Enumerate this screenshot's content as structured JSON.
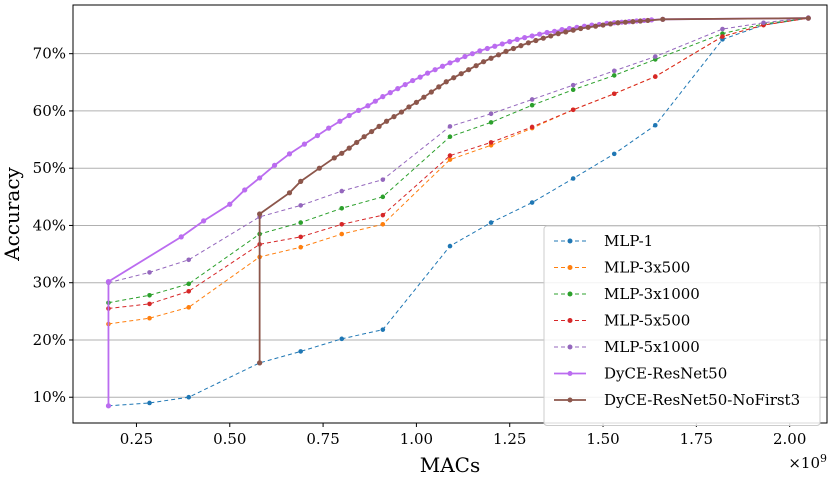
{
  "chart_data": {
    "type": "line",
    "xlabel": "MACs",
    "ylabel": "Accuracy",
    "x_multiplier": "×10",
    "x_multiplier_exp": "9",
    "xlim": [
      0.08,
      2.1
    ],
    "ylim": [
      0.055,
      0.785
    ],
    "xticks": [
      0.25,
      0.5,
      0.75,
      1.0,
      1.25,
      1.5,
      1.75,
      2.0
    ],
    "xtick_labels": [
      "0.25",
      "0.50",
      "0.75",
      "1.00",
      "1.25",
      "1.50",
      "1.75",
      "2.00"
    ],
    "yticks": [
      0.1,
      0.2,
      0.3,
      0.4,
      0.5,
      0.6,
      0.7
    ],
    "ytick_labels": [
      "10%",
      "20%",
      "30%",
      "40%",
      "50%",
      "60%",
      "70%"
    ],
    "grid": "horizontal",
    "legend_position": "lower-right",
    "series": [
      {
        "name": "MLP-1",
        "color": "#1f77b4",
        "style": "dashed",
        "x": [
          0.175,
          0.285,
          0.39,
          0.58,
          0.69,
          0.8,
          0.91,
          1.09,
          1.2,
          1.31,
          1.42,
          1.53,
          1.64,
          1.82,
          1.93,
          2.05
        ],
        "y": [
          0.085,
          0.09,
          0.1,
          0.16,
          0.18,
          0.202,
          0.218,
          0.364,
          0.405,
          0.44,
          0.482,
          0.525,
          0.575,
          0.725,
          0.75,
          0.762
        ]
      },
      {
        "name": "MLP-3x500",
        "color": "#ff7f0e",
        "style": "dashed",
        "x": [
          0.175,
          0.285,
          0.39,
          0.58,
          0.69,
          0.8,
          0.91,
          1.09,
          1.2,
          1.31,
          1.42,
          1.53,
          1.64,
          1.82,
          1.93,
          2.05
        ],
        "y": [
          0.228,
          0.238,
          0.257,
          0.345,
          0.362,
          0.385,
          0.402,
          0.515,
          0.54,
          0.57,
          0.602,
          0.63,
          0.66,
          0.73,
          0.75,
          0.762
        ]
      },
      {
        "name": "MLP-3x1000",
        "color": "#2ca02c",
        "style": "dashed",
        "x": [
          0.175,
          0.285,
          0.39,
          0.58,
          0.69,
          0.8,
          0.91,
          1.09,
          1.2,
          1.31,
          1.42,
          1.53,
          1.64,
          1.82,
          1.93,
          2.05
        ],
        "y": [
          0.265,
          0.278,
          0.298,
          0.385,
          0.405,
          0.43,
          0.45,
          0.555,
          0.58,
          0.61,
          0.637,
          0.662,
          0.69,
          0.735,
          0.752,
          0.762
        ]
      },
      {
        "name": "MLP-5x500",
        "color": "#d62728",
        "style": "dashed",
        "x": [
          0.175,
          0.285,
          0.39,
          0.58,
          0.69,
          0.8,
          0.91,
          1.09,
          1.2,
          1.31,
          1.42,
          1.53,
          1.64,
          1.82,
          1.93,
          2.05
        ],
        "y": [
          0.255,
          0.263,
          0.285,
          0.367,
          0.38,
          0.402,
          0.418,
          0.522,
          0.545,
          0.572,
          0.602,
          0.63,
          0.66,
          0.73,
          0.75,
          0.762
        ]
      },
      {
        "name": "MLP-5x1000",
        "color": "#9467bd",
        "style": "dashed",
        "x": [
          0.175,
          0.285,
          0.39,
          0.58,
          0.69,
          0.8,
          0.91,
          1.09,
          1.2,
          1.31,
          1.42,
          1.53,
          1.64,
          1.82,
          1.93,
          2.05
        ],
        "y": [
          0.3,
          0.318,
          0.34,
          0.415,
          0.435,
          0.46,
          0.48,
          0.573,
          0.595,
          0.62,
          0.645,
          0.67,
          0.695,
          0.743,
          0.754,
          0.763
        ]
      },
      {
        "name": "DyCE-ResNet50",
        "color": "#bb6cf0",
        "style": "solid",
        "x": [
          0.175,
          0.175,
          0.37,
          0.43,
          0.5,
          0.54,
          0.58,
          0.62,
          0.66,
          0.7,
          0.735,
          0.765,
          0.795,
          0.82,
          0.845,
          0.87,
          0.89,
          0.91,
          0.93,
          0.95,
          0.97,
          0.99,
          1.01,
          1.03,
          1.05,
          1.07,
          1.09,
          1.11,
          1.13,
          1.15,
          1.17,
          1.19,
          1.21,
          1.23,
          1.25,
          1.27,
          1.29,
          1.31,
          1.33,
          1.35,
          1.37,
          1.39,
          1.41,
          1.43,
          1.45,
          1.47,
          1.49,
          1.51,
          1.53,
          1.55,
          1.57,
          1.59,
          1.61,
          1.63,
          1.66,
          2.05
        ],
        "y": [
          0.085,
          0.302,
          0.38,
          0.408,
          0.437,
          0.462,
          0.483,
          0.505,
          0.525,
          0.542,
          0.557,
          0.57,
          0.582,
          0.592,
          0.601,
          0.609,
          0.617,
          0.625,
          0.632,
          0.639,
          0.646,
          0.653,
          0.659,
          0.666,
          0.672,
          0.678,
          0.684,
          0.689,
          0.695,
          0.7,
          0.705,
          0.709,
          0.713,
          0.717,
          0.721,
          0.725,
          0.728,
          0.731,
          0.734,
          0.737,
          0.739,
          0.742,
          0.744,
          0.746,
          0.748,
          0.75,
          0.751,
          0.753,
          0.754,
          0.755,
          0.756,
          0.757,
          0.758,
          0.759,
          0.76,
          0.762
        ]
      },
      {
        "name": "DyCE-ResNet50-NoFirst3",
        "color": "#8c564b",
        "style": "solid",
        "x": [
          0.58,
          0.58,
          0.66,
          0.69,
          0.74,
          0.78,
          0.8,
          0.82,
          0.84,
          0.86,
          0.88,
          0.9,
          0.92,
          0.94,
          0.96,
          0.98,
          1.0,
          1.02,
          1.04,
          1.06,
          1.08,
          1.1,
          1.12,
          1.14,
          1.16,
          1.18,
          1.2,
          1.22,
          1.24,
          1.26,
          1.28,
          1.3,
          1.32,
          1.34,
          1.36,
          1.38,
          1.4,
          1.42,
          1.44,
          1.46,
          1.48,
          1.5,
          1.52,
          1.54,
          1.56,
          1.58,
          1.6,
          1.62,
          1.66,
          2.05
        ],
        "y": [
          0.16,
          0.42,
          0.457,
          0.477,
          0.5,
          0.518,
          0.526,
          0.535,
          0.545,
          0.555,
          0.564,
          0.573,
          0.582,
          0.59,
          0.598,
          0.607,
          0.615,
          0.624,
          0.633,
          0.642,
          0.651,
          0.658,
          0.665,
          0.672,
          0.679,
          0.686,
          0.692,
          0.698,
          0.704,
          0.709,
          0.714,
          0.719,
          0.723,
          0.727,
          0.731,
          0.735,
          0.738,
          0.741,
          0.744,
          0.746,
          0.748,
          0.75,
          0.752,
          0.754,
          0.755,
          0.756,
          0.757,
          0.758,
          0.76,
          0.762
        ]
      }
    ]
  }
}
